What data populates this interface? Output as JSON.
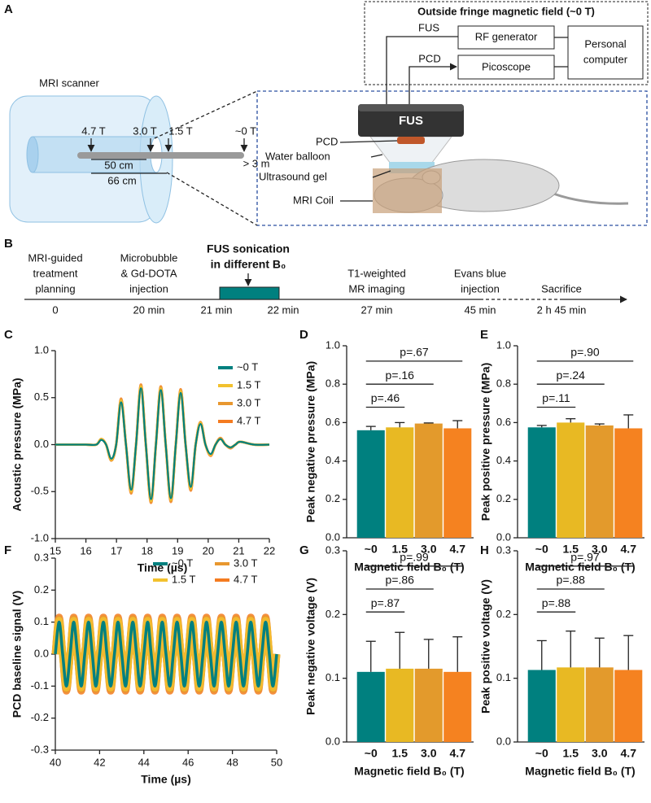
{
  "diagram": {
    "panel_label": "A",
    "fringe_box": {
      "title": "Outside fringe magnetic field (~0 T)",
      "fus": "FUS",
      "rf_generator": "RF generator",
      "pcd": "PCD",
      "picoscope": "Picoscope",
      "computer": [
        "Personal",
        "computer"
      ]
    },
    "scanner": {
      "label": "MRI scanner",
      "positions": [
        "4.7 T",
        "3.0 T",
        "1.5 T",
        "~0 T"
      ],
      "distances": [
        "50 cm",
        "66 cm",
        "> 3 m"
      ]
    },
    "setup": {
      "transducer": "FUS",
      "labels": [
        "PCD",
        "Water balloon",
        "Ultrasound gel",
        "MRI Coil"
      ]
    }
  },
  "timeline": {
    "panel_label": "B",
    "events": [
      {
        "lines": [
          "MRI-guided",
          "treatment",
          "planning"
        ],
        "times": [
          "0"
        ]
      },
      {
        "lines": [
          "Microbubble",
          "& Gd-DOTA",
          "injection"
        ],
        "times": [
          "20 min"
        ]
      },
      {
        "lines": [
          "FUS sonication",
          "in different B₀"
        ],
        "times": [
          "21 min",
          "22 min"
        ]
      },
      {
        "lines": [
          "T1-weighted",
          "MR imaging"
        ],
        "times": [
          "27 min"
        ]
      },
      {
        "lines": [
          "Evans blue",
          "injection"
        ],
        "times": [
          "45 min"
        ]
      },
      {
        "lines": [
          "Sacrifice"
        ],
        "times": [
          "2 h 45 min"
        ]
      }
    ]
  },
  "chart_data": [
    {
      "type": "line",
      "panel_label": "C",
      "xlabel": "Time (µs)",
      "ylabel": "Acoustic pressure (MPa)",
      "xlim": [
        15,
        22
      ],
      "xticks": [
        15,
        16,
        17,
        18,
        19,
        20,
        21,
        22
      ],
      "ylim": [
        -1,
        1
      ],
      "yticks": [
        {
          "value": -1,
          "label": "-1.0"
        },
        -0.5,
        {
          "value": 0,
          "label": "0.0"
        },
        0.5,
        {
          "value": 1,
          "label": "1.0"
        }
      ],
      "legend_columns": 1,
      "x": [
        15,
        15.5,
        16,
        16.34,
        16.5,
        16.66,
        16.83,
        16.99,
        17.15,
        17.31,
        17.48,
        17.64,
        17.8,
        17.96,
        18.13,
        18.29,
        18.45,
        18.61,
        18.78,
        18.94,
        19.1,
        19.26,
        19.43,
        19.59,
        19.75,
        19.91,
        20.08,
        20.24,
        20.4,
        20.56,
        20.73,
        20.89,
        21.05,
        21.5,
        22
      ],
      "series": [
        {
          "name": "~0 T",
          "color": "#00807f",
          "values": [
            0,
            0,
            0,
            0,
            0.05,
            0,
            -0.15,
            0,
            0.45,
            0,
            -0.48,
            0,
            0.6,
            0,
            -0.58,
            0,
            0.58,
            0,
            -0.57,
            0,
            0.55,
            0,
            -0.45,
            0,
            0.22,
            0,
            -0.1,
            0,
            0.06,
            0,
            -0.03,
            0,
            0.03,
            0,
            0
          ]
        },
        {
          "name": "1.5 T",
          "color": "#f2c12e",
          "values": [
            0,
            0,
            0,
            0,
            0.06,
            0,
            -0.16,
            0,
            0.47,
            0,
            -0.5,
            0,
            0.62,
            0,
            -0.6,
            0,
            0.6,
            0,
            -0.59,
            0,
            0.57,
            0,
            -0.47,
            0,
            0.23,
            0,
            -0.11,
            0,
            0.06,
            0,
            -0.03,
            0,
            0.03,
            0,
            0
          ]
        },
        {
          "name": "3.0 T",
          "color": "#e8972f",
          "values": [
            0,
            0,
            0,
            0,
            0.06,
            0,
            -0.17,
            0,
            0.48,
            0,
            -0.51,
            0,
            0.63,
            0,
            -0.61,
            0,
            0.61,
            0,
            -0.6,
            0,
            0.58,
            0,
            -0.48,
            0,
            0.24,
            0,
            -0.11,
            0,
            0.07,
            0,
            -0.03,
            0,
            0.03,
            0,
            0
          ]
        },
        {
          "name": "4.7 T",
          "color": "#f47b20",
          "values": [
            0,
            0,
            0,
            0,
            0.06,
            0,
            -0.17,
            0,
            0.49,
            0,
            -0.52,
            0,
            0.64,
            0,
            -0.62,
            0,
            0.62,
            0,
            -0.61,
            0,
            0.59,
            0,
            -0.49,
            0,
            0.24,
            0,
            -0.12,
            0,
            0.07,
            0,
            -0.04,
            0,
            0.03,
            0,
            0
          ]
        }
      ]
    },
    {
      "type": "bar",
      "panel_label": "D",
      "xlabel": "Magnetic field B₀ (T)",
      "ylabel": "Peak negative pressure (MPa)",
      "ylim": [
        0,
        1
      ],
      "yticks": [
        {
          "value": 0,
          "label": "0.0"
        },
        0.2,
        0.4,
        0.6,
        0.8,
        {
          "value": 1,
          "label": "1.0"
        }
      ],
      "categories": [
        "~0",
        "1.5",
        "3.0",
        "4.7"
      ],
      "values": [
        0.56,
        0.575,
        0.595,
        0.57
      ],
      "errors": [
        0.02,
        0.025,
        0.003,
        0.04
      ],
      "colors": [
        "#00807f",
        "#e8b923",
        "#e39a2c",
        "#f58220"
      ],
      "annotations": [
        "p=.46",
        "p=.16",
        "p=.67"
      ]
    },
    {
      "type": "bar",
      "panel_label": "E",
      "xlabel": "Magnetic field B₀ (T)",
      "ylabel": "Peak positive pressure (MPa)",
      "ylim": [
        0,
        1
      ],
      "yticks": [
        {
          "value": 0,
          "label": "0.0"
        },
        0.2,
        0.4,
        0.6,
        0.8,
        {
          "value": 1,
          "label": "1.0"
        }
      ],
      "categories": [
        "~0",
        "1.5",
        "3.0",
        "4.7"
      ],
      "values": [
        0.575,
        0.6,
        0.585,
        0.57
      ],
      "errors": [
        0.01,
        0.02,
        0.008,
        0.07
      ],
      "colors": [
        "#00807f",
        "#e8b923",
        "#e39a2c",
        "#f58220"
      ],
      "annotations": [
        "p=.11",
        "p=.24",
        "p=.90"
      ]
    },
    {
      "type": "line",
      "panel_label": "F",
      "xlabel": "Time (µs)",
      "ylabel": "PCD baseline signal (V)",
      "xlim": [
        40,
        50
      ],
      "xticks": [
        40,
        42,
        44,
        46,
        48,
        50
      ],
      "ylim": [
        -0.3,
        0.3
      ],
      "yticks": [
        -0.3,
        -0.2,
        -0.1,
        {
          "value": 0,
          "label": "0.0"
        },
        0.1,
        0.2,
        0.3
      ],
      "legend_columns": 2,
      "x": [
        40,
        40.17,
        40.33,
        40.5,
        40.67,
        40.83,
        41,
        41.17,
        41.33,
        41.5,
        41.67,
        41.83,
        42,
        42.17,
        42.33,
        42.5,
        42.67,
        42.83,
        43,
        43.17,
        43.33,
        43.5,
        43.67,
        43.83,
        44,
        44.17,
        44.33,
        44.5,
        44.67,
        44.83,
        45,
        45.17,
        45.33,
        45.5,
        45.67,
        45.83,
        46,
        46.17,
        46.33,
        46.5,
        46.67,
        46.83,
        47,
        47.17,
        47.33,
        47.5,
        47.67,
        47.83,
        48,
        48.17,
        48.33,
        48.5,
        48.67,
        48.83,
        49,
        49.17,
        49.33,
        49.5,
        49.67,
        49.83,
        50
      ],
      "series": [
        {
          "name": "~0 T",
          "color": "#00807f",
          "values": [
            0,
            0.1,
            0,
            -0.1,
            0,
            0.1,
            0,
            -0.1,
            0,
            0.1,
            0,
            -0.1,
            0,
            0.1,
            0,
            -0.1,
            0,
            0.1,
            0,
            -0.1,
            0,
            0.1,
            0,
            -0.1,
            0,
            0.1,
            0,
            -0.1,
            0,
            0.1,
            0,
            -0.1,
            0,
            0.1,
            0,
            -0.1,
            0,
            0.1,
            0,
            -0.1,
            0,
            0.1,
            0,
            -0.1,
            0,
            0.1,
            0,
            -0.1,
            0,
            0.1,
            0,
            -0.1,
            0,
            0.1,
            0,
            -0.1,
            0,
            0.1,
            0,
            -0.1,
            0
          ]
        },
        {
          "name": "1.5 T",
          "color": "#f2c12e",
          "values": [
            0,
            0.105,
            0,
            -0.105,
            0,
            0.105,
            0,
            -0.105,
            0,
            0.105,
            0,
            -0.105,
            0,
            0.105,
            0,
            -0.105,
            0,
            0.105,
            0,
            -0.105,
            0,
            0.105,
            0,
            -0.105,
            0,
            0.105,
            0,
            -0.105,
            0,
            0.105,
            0,
            -0.105,
            0,
            0.105,
            0,
            -0.105,
            0,
            0.105,
            0,
            -0.105,
            0,
            0.105,
            0,
            -0.105,
            0,
            0.105,
            0,
            -0.105,
            0,
            0.105,
            0,
            -0.105,
            0,
            0.105,
            0,
            -0.105,
            0,
            0.105,
            0,
            -0.105,
            0
          ]
        },
        {
          "name": "3.0 T",
          "color": "#e8972f",
          "values": [
            0,
            0.11,
            0,
            -0.11,
            0,
            0.11,
            0,
            -0.11,
            0,
            0.11,
            0,
            -0.11,
            0,
            0.11,
            0,
            -0.11,
            0,
            0.11,
            0,
            -0.11,
            0,
            0.11,
            0,
            -0.11,
            0,
            0.11,
            0,
            -0.11,
            0,
            0.11,
            0,
            -0.11,
            0,
            0.11,
            0,
            -0.11,
            0,
            0.11,
            0,
            -0.11,
            0,
            0.11,
            0,
            -0.11,
            0,
            0.11,
            0,
            -0.11,
            0,
            0.11,
            0,
            -0.11,
            0,
            0.11,
            0,
            -0.11,
            0,
            0.11,
            0,
            -0.11,
            0
          ]
        },
        {
          "name": "4.7 T",
          "color": "#f47b20",
          "values": [
            0,
            0.115,
            0,
            -0.115,
            0,
            0.115,
            0,
            -0.115,
            0,
            0.115,
            0,
            -0.115,
            0,
            0.115,
            0,
            -0.115,
            0,
            0.115,
            0,
            -0.115,
            0,
            0.115,
            0,
            -0.115,
            0,
            0.115,
            0,
            -0.115,
            0,
            0.115,
            0,
            -0.115,
            0,
            0.115,
            0,
            -0.115,
            0,
            0.115,
            0,
            -0.115,
            0,
            0.115,
            0,
            -0.115,
            0,
            0.115,
            0,
            -0.115,
            0,
            0.115,
            0,
            -0.115,
            0,
            0.115,
            0,
            -0.115,
            0,
            0.115,
            0,
            -0.115,
            0
          ]
        }
      ]
    },
    {
      "type": "bar",
      "panel_label": "G",
      "xlabel": "Magnetic field B₀ (T)",
      "ylabel": "Peak negative voltage (V)",
      "ylim": [
        0,
        0.3
      ],
      "yticks": [
        {
          "value": 0,
          "label": "0.0"
        },
        0.1,
        0.2,
        0.3
      ],
      "categories": [
        "~0",
        "1.5",
        "3.0",
        "4.7"
      ],
      "values": [
        0.11,
        0.115,
        0.115,
        0.11
      ],
      "errors": [
        0.048,
        0.057,
        0.046,
        0.055
      ],
      "colors": [
        "#00807f",
        "#e8b923",
        "#e39a2c",
        "#f58220"
      ],
      "annotations": [
        "p=.87",
        "p=.86",
        "p=.99"
      ]
    },
    {
      "type": "bar",
      "panel_label": "H",
      "xlabel": "Magnetic field B₀ (T)",
      "ylabel": "Peak positive voltage (V)",
      "ylim": [
        0,
        0.3
      ],
      "yticks": [
        {
          "value": 0,
          "label": "0.0"
        },
        0.1,
        0.2,
        0.3
      ],
      "categories": [
        "~0",
        "1.5",
        "3.0",
        "4.7"
      ],
      "values": [
        0.113,
        0.117,
        0.117,
        0.113
      ],
      "errors": [
        0.046,
        0.057,
        0.046,
        0.054
      ],
      "colors": [
        "#00807f",
        "#e8b923",
        "#e39a2c",
        "#f58220"
      ],
      "annotations": [
        "p=.88",
        "p=.88",
        "p=.97"
      ]
    }
  ]
}
